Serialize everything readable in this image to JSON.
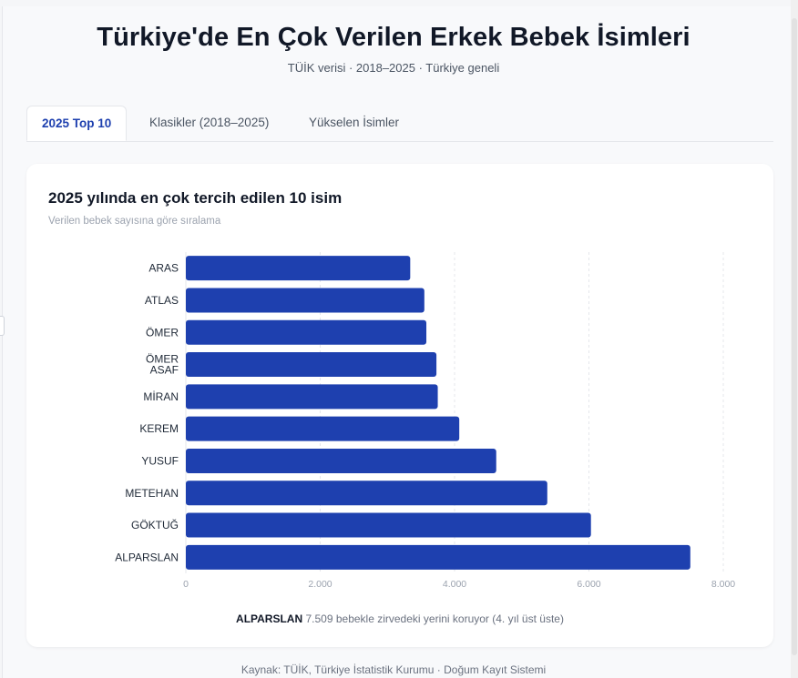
{
  "page": {
    "title": "Türkiye'de En Çok Verilen Erkek Bebek İsimleri",
    "subtitle": "TÜİK verisi · 2018–2025 · Türkiye geneli",
    "footer": "Kaynak: TÜİK, Türkiye İstatistik Kurumu · Doğum Kayıt Sistemi"
  },
  "tabs": [
    {
      "label": "2025 Top 10",
      "active": true
    },
    {
      "label": "Klasikler (2018–2025)",
      "active": false
    },
    {
      "label": "Yükselen İsimler",
      "active": false
    }
  ],
  "card": {
    "title": "2025 yılında en çok tercih edilen 10 isim",
    "subtitle": "Verilen bebek sayısına göre sıralama",
    "note_name": "ALPARSLAN",
    "note_text": "7.509 bebekle zirvedeki yerini koruyor (4. yıl üst üste)"
  },
  "colors": {
    "bar": "#1e40af",
    "grid": "#e5e7eb",
    "tab_active": "#1e40af"
  },
  "chart_data": {
    "type": "bar",
    "orientation": "horizontal",
    "categories": [
      "ARAS",
      "ATLAS",
      "ÖMER",
      "ÖMER ASAF",
      "MİRAN",
      "KEREM",
      "YUSUF",
      "METEHAN",
      "GÖKTUĞ",
      "ALPARSLAN"
    ],
    "values": [
      3340,
      3550,
      3580,
      3730,
      3750,
      4070,
      4620,
      5380,
      6030,
      7509
    ],
    "xlim": [
      0,
      8000
    ],
    "xticks": [
      0,
      2000,
      4000,
      6000,
      8000
    ],
    "xtick_labels": [
      "0",
      "2.000",
      "4.000",
      "6.000",
      "8.000"
    ],
    "grid": true,
    "legend": "none"
  }
}
